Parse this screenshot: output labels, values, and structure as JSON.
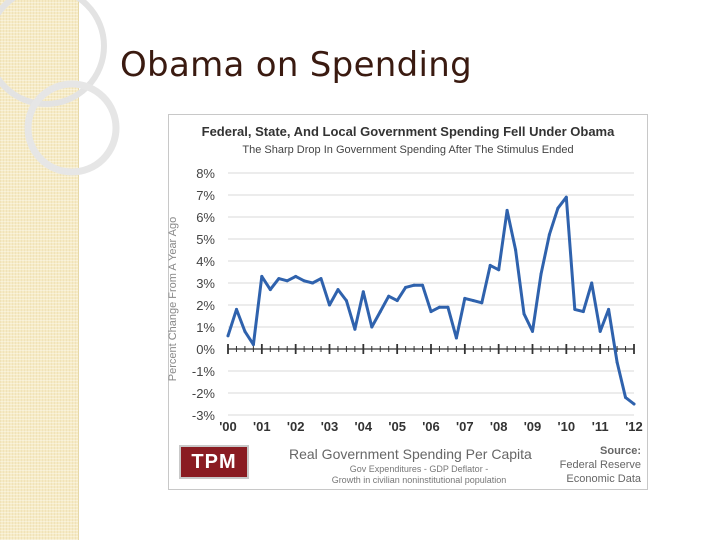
{
  "slide": {
    "title": "Obama on Spending"
  },
  "colors": {
    "line": "#2f62ad",
    "grid": "#d9d9d9",
    "logo_bg": "#8a1c22",
    "strip_bg": "#f6ebc6"
  },
  "chart_data": {
    "type": "line",
    "title": "Federal, State, And Local Government Spending Fell Under Obama",
    "subtitle": "The Sharp Drop In Government Spending After The Stimulus Ended",
    "ylabel": "Percent Change From A Year Ago",
    "xlabel": "",
    "ylim": [
      -3,
      8
    ],
    "xlim": [
      2000,
      2012
    ],
    "y_ticks": [
      "8%",
      "7%",
      "6%",
      "5%",
      "4%",
      "3%",
      "2%",
      "1%",
      "0%",
      "-1%",
      "-2%",
      "-3%"
    ],
    "x_tick_labels": [
      "'00",
      "'01",
      "'02",
      "'03",
      "'04",
      "'05",
      "'06",
      "'07",
      "'08",
      "'09",
      "'10",
      "'11",
      "'12"
    ],
    "grid": true,
    "series": [
      {
        "values": [
          [
            2000.0,
            0.6
          ],
          [
            2000.25,
            1.8
          ],
          [
            2000.5,
            0.8
          ],
          [
            2000.75,
            0.2
          ],
          [
            2001.0,
            3.3
          ],
          [
            2001.25,
            2.7
          ],
          [
            2001.5,
            3.2
          ],
          [
            2001.75,
            3.1
          ],
          [
            2002.0,
            3.3
          ],
          [
            2002.25,
            3.1
          ],
          [
            2002.5,
            3.0
          ],
          [
            2002.75,
            3.2
          ],
          [
            2003.0,
            2.0
          ],
          [
            2003.25,
            2.7
          ],
          [
            2003.5,
            2.2
          ],
          [
            2003.75,
            0.9
          ],
          [
            2004.0,
            2.6
          ],
          [
            2004.25,
            1.0
          ],
          [
            2004.5,
            1.7
          ],
          [
            2004.75,
            2.4
          ],
          [
            2005.0,
            2.2
          ],
          [
            2005.25,
            2.8
          ],
          [
            2005.5,
            2.9
          ],
          [
            2005.75,
            2.9
          ],
          [
            2006.0,
            1.7
          ],
          [
            2006.25,
            1.9
          ],
          [
            2006.5,
            1.9
          ],
          [
            2006.75,
            0.5
          ],
          [
            2007.0,
            2.3
          ],
          [
            2007.25,
            2.2
          ],
          [
            2007.5,
            2.1
          ],
          [
            2007.75,
            3.8
          ],
          [
            2008.0,
            3.6
          ],
          [
            2008.25,
            6.3
          ],
          [
            2008.5,
            4.5
          ],
          [
            2008.75,
            1.6
          ],
          [
            2009.0,
            0.8
          ],
          [
            2009.25,
            3.4
          ],
          [
            2009.5,
            5.2
          ],
          [
            2009.75,
            6.4
          ],
          [
            2010.0,
            6.9
          ],
          [
            2010.25,
            1.8
          ],
          [
            2010.5,
            1.7
          ],
          [
            2010.75,
            3.0
          ],
          [
            2011.0,
            0.8
          ],
          [
            2011.25,
            1.8
          ],
          [
            2011.5,
            -0.6
          ],
          [
            2011.75,
            -2.2
          ],
          [
            2012.0,
            -2.5
          ]
        ]
      }
    ]
  },
  "footer": {
    "logo": "TPM",
    "title": "Real Government Spending Per Capita",
    "line1": "Gov Expenditures - GDP Deflator -",
    "line2": "Growth in civilian noninstitutional population",
    "source_label": "Source:",
    "source_line1": "Federal Reserve",
    "source_line2": "Economic Data"
  }
}
